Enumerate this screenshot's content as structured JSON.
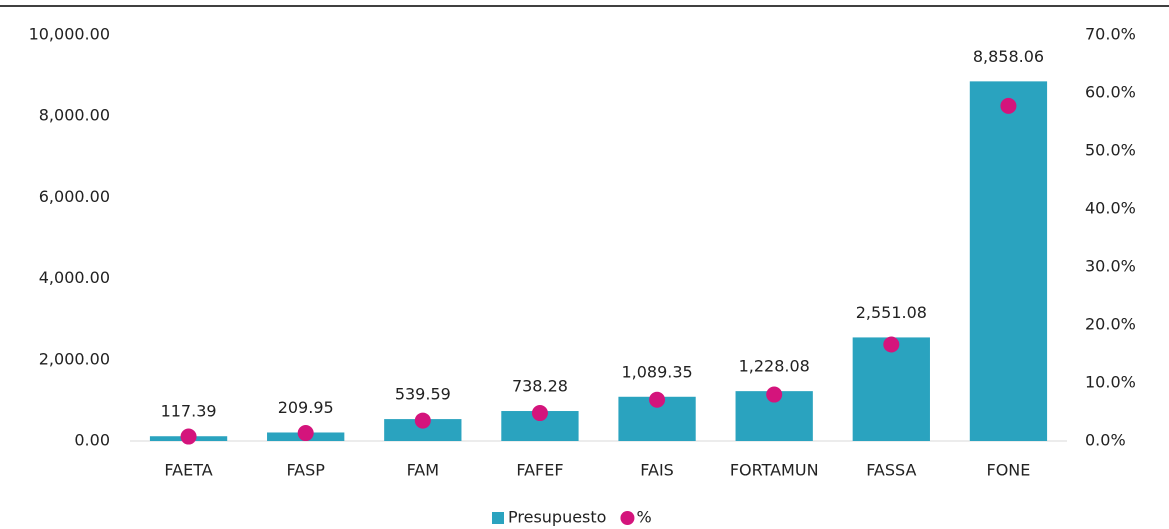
{
  "chart_data": {
    "type": "bar",
    "categories": [
      "FAETA",
      "FASP",
      "FAM",
      "FAFEF",
      "FAIS",
      "FORTAMUN",
      "FASSA",
      "FONE"
    ],
    "series": [
      {
        "name": "Presupuesto",
        "type": "bar",
        "color": "#2aa3bf",
        "values": [
          117.39,
          209.95,
          539.59,
          738.28,
          1089.35,
          1228.08,
          2551.08,
          8858.06
        ],
        "value_labels": [
          "117.39",
          "209.95",
          "539.59",
          "738.28",
          "1,089.35",
          "1,228.08",
          "2,551.08",
          "8,858.06"
        ]
      },
      {
        "name": "%",
        "type": "scatter",
        "axis": "y2",
        "color": "#d4147c",
        "values": [
          0.77,
          1.37,
          3.52,
          4.82,
          7.11,
          8.01,
          16.64,
          57.78
        ]
      }
    ],
    "ylim": [
      0,
      10000
    ],
    "yticks": [
      {
        "value": 0,
        "label": "0.00"
      },
      {
        "value": 2000,
        "label": "2,000.00"
      },
      {
        "value": 4000,
        "label": "4,000.00"
      },
      {
        "value": 6000,
        "label": "6,000.00"
      },
      {
        "value": 8000,
        "label": "8,000.00"
      },
      {
        "value": 10000,
        "label": "10,000.00"
      }
    ],
    "y2lim": [
      0,
      70
    ],
    "y2ticks": [
      {
        "value": 0,
        "label": "0.0%"
      },
      {
        "value": 10,
        "label": "10.0%"
      },
      {
        "value": 20,
        "label": "20.0%"
      },
      {
        "value": 30,
        "label": "30.0%"
      },
      {
        "value": 40,
        "label": "40.0%"
      },
      {
        "value": 50,
        "label": "50.0%"
      },
      {
        "value": 60,
        "label": "60.0%"
      },
      {
        "value": 70,
        "label": "70.0%"
      }
    ],
    "legend": "bottom"
  }
}
